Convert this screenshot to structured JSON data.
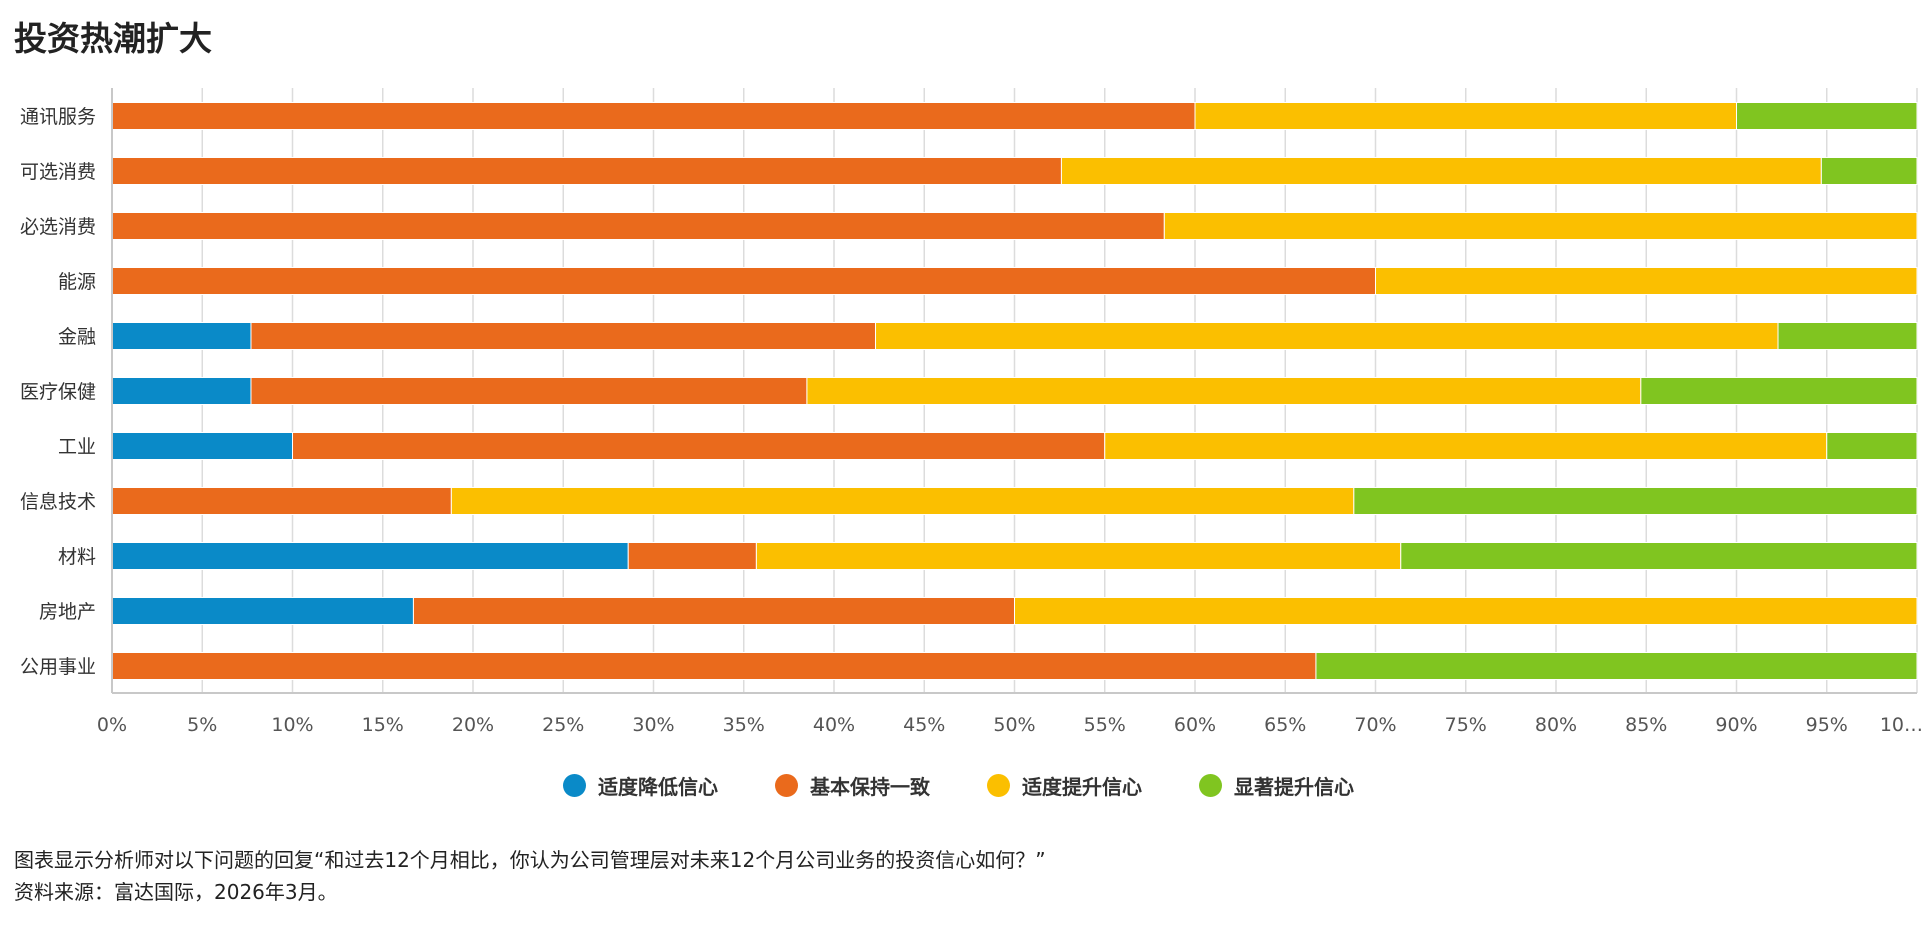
{
  "page": {
    "title": "投资热潮扩大",
    "footnote": "图表显示分析师对以下问题的回复“和过去12个月相比，你认为公司管理层对未来12个月公司业务的投资信心如何？”",
    "source": "资料来源：富达国际，2026年3月。"
  },
  "legend": [
    {
      "label": "适度降低信心",
      "color": "#0a8ac8"
    },
    {
      "label": "基本保持一致",
      "color": "#ea6a1c"
    },
    {
      "label": "适度提升信心",
      "color": "#fbbf00"
    },
    {
      "label": "显著提升信心",
      "color": "#80c520"
    }
  ],
  "chart_data": {
    "type": "bar",
    "orientation": "horizontal",
    "stacked": true,
    "normalized": "percent",
    "title": "投资热潮扩大",
    "xlabel": "",
    "ylabel": "",
    "xlim": [
      0,
      100
    ],
    "x_ticks": [
      "0%",
      "5%",
      "10%",
      "15%",
      "20%",
      "25%",
      "30%",
      "35%",
      "40%",
      "45%",
      "50%",
      "55%",
      "60%",
      "65%",
      "70%",
      "75%",
      "80%",
      "85%",
      "90%",
      "95%",
      "10…"
    ],
    "grid": true,
    "legend_position": "bottom-center",
    "categories": [
      "通讯服务",
      "可选消费",
      "必选消费",
      "能源",
      "金融",
      "医疗保健",
      "工业",
      "信息技术",
      "材料",
      "房地产",
      "公用事业"
    ],
    "series": [
      {
        "name": "适度降低信心",
        "color": "#0a8ac8",
        "values": [
          0,
          0,
          0,
          0,
          7.7,
          7.7,
          10,
          0,
          28.6,
          16.7,
          0
        ]
      },
      {
        "name": "基本保持一致",
        "color": "#ea6a1c",
        "values": [
          60,
          52.6,
          58.3,
          70,
          34.6,
          30.8,
          45,
          18.8,
          7.1,
          33.3,
          66.7
        ]
      },
      {
        "name": "适度提升信心",
        "color": "#fbbf00",
        "values": [
          30,
          42.1,
          41.7,
          30,
          50,
          46.2,
          40,
          50,
          35.7,
          50,
          0
        ]
      },
      {
        "name": "显著提升信心",
        "color": "#80c520",
        "values": [
          10,
          5.3,
          0,
          0,
          7.7,
          15.3,
          5,
          31.2,
          28.6,
          0,
          33.3
        ]
      }
    ]
  }
}
